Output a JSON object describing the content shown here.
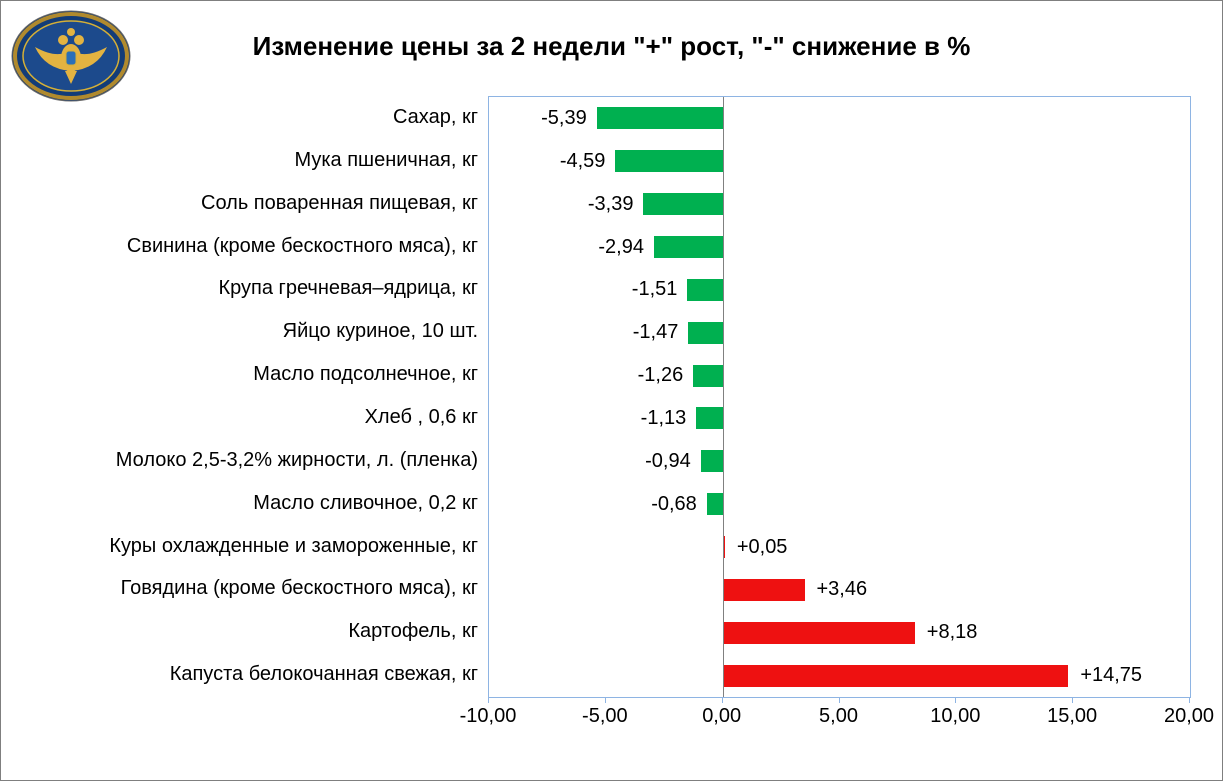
{
  "title": "Изменение цены за 2 недели \"+\" рост, \"-\" снижение в %",
  "logo": {
    "name": "treasury-emblem",
    "description": "double-headed eagle emblem on blue oval with gold frame",
    "field_color": "#1c4a8c",
    "frame_color": "#b08a2e",
    "eagle_color": "#e3b341"
  },
  "chart_data": {
    "type": "bar",
    "orientation": "horizontal",
    "title": "Изменение цены за 2 недели \"+\" рост, \"-\" снижение в %",
    "xlabel": "",
    "ylabel": "",
    "xlim": [
      -10,
      20
    ],
    "x_ticks": [
      -10,
      -5,
      0,
      5,
      10,
      15,
      20
    ],
    "x_tick_labels": [
      "-10,00",
      "-5,00",
      "0,00",
      "5,00",
      "10,00",
      "15,00",
      "20,00"
    ],
    "grid": false,
    "legend": false,
    "categories": [
      "Сахар, кг",
      "Мука пшеничная, кг",
      "Соль поваренная пищевая, кг",
      "Свинина (кроме бескостного мяса), кг",
      "Крупа гречневая–ядрица, кг",
      "Яйцо куриное, 10 шт.",
      "Масло подсолнечное, кг",
      "Хлеб , 0,6 кг",
      "Молоко 2,5-3,2% жирности, л. (пленка)",
      "Масло сливочное, 0,2 кг",
      "Куры охлажденные и замороженные, кг",
      "Говядина (кроме бескостного мяса), кг",
      "Картофель, кг",
      "Капуста белокочанная свежая, кг"
    ],
    "values": [
      -5.39,
      -4.59,
      -3.39,
      -2.94,
      -1.51,
      -1.47,
      -1.26,
      -1.13,
      -0.94,
      -0.68,
      0.05,
      3.46,
      8.18,
      14.75
    ],
    "value_labels": [
      "-5,39",
      "-4,59",
      "-3,39",
      "-2,94",
      "-1,51",
      "-1,47",
      "-1,26",
      "-1,13",
      "-0,94",
      "-0,68",
      "+0,05",
      "+3,46",
      "+8,18",
      "+14,75"
    ],
    "negative_color": "#00B050",
    "positive_color": "#EE1111",
    "axis_line_color": "#808080",
    "plot_border_color": "#8EB4E3"
  }
}
